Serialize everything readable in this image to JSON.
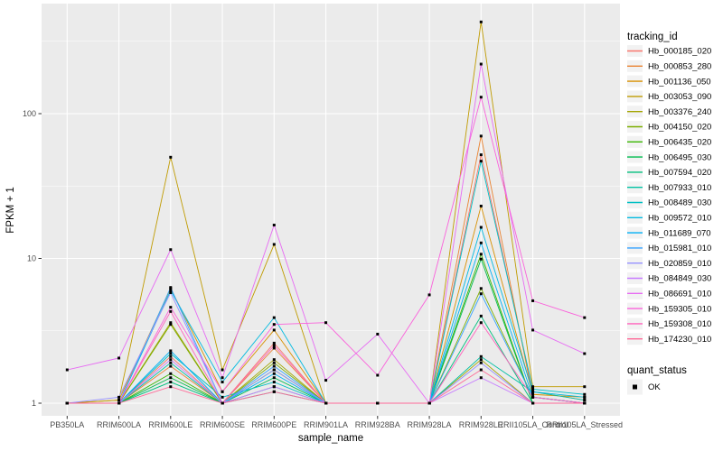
{
  "style": {
    "panel_bg": "#EBEBEB",
    "grid_color": "#FFFFFF",
    "legend_key_bg": "#F2F2F2",
    "point_color": "#000000",
    "tick_label_color": "#4D4D4D",
    "axis_title_color": "#000000"
  },
  "legend": {
    "title": "tracking_id"
  },
  "quant_legend": {
    "title": "quant_status",
    "items": [
      {
        "label": "OK",
        "marker": "black-square"
      }
    ]
  },
  "chart_data": {
    "type": "line",
    "title": "",
    "xlabel": "sample_name",
    "ylabel": "FPKM + 1",
    "y_scale": "log10",
    "ylim": [
      1,
      450
    ],
    "y_ticks": [
      "1",
      "10",
      "100"
    ],
    "y_minor_gridlines": [
      3.162,
      31.62,
      316.2
    ],
    "grid": "on",
    "legend_position": "right",
    "x_categories": [
      "PB350LA",
      "RRIM600LA",
      "RRIM600LE",
      "RRIM600SE",
      "RRIM600PE",
      "RRIM901LA",
      "RRIM928BA",
      "RRIM928LA",
      "RRIM928LE",
      "RRII105LA_Control",
      "RRII105LA_Stressed"
    ],
    "point_marker": "black-square",
    "series": [
      {
        "name": "Hb_000185_020",
        "color": "#F8766D",
        "values": [
          1,
          1,
          2.1,
          1,
          2.6,
          1,
          1,
          1,
          52,
          1.2,
          1.05
        ]
      },
      {
        "name": "Hb_000853_280",
        "color": "#EA8331",
        "values": [
          1,
          1,
          1.8,
          1,
          2.4,
          1,
          1,
          1,
          70,
          1.1,
          1
        ]
      },
      {
        "name": "Hb_001136_050",
        "color": "#D89000",
        "values": [
          1,
          1.05,
          6.2,
          1.2,
          3.2,
          1,
          1,
          1,
          23,
          1.15,
          1.1
        ]
      },
      {
        "name": "Hb_003053_090",
        "color": "#C09B00",
        "values": [
          1,
          1.05,
          50,
          1.7,
          12.5,
          1,
          1,
          1,
          430,
          1.3,
          1.3
        ]
      },
      {
        "name": "Hb_003376_240",
        "color": "#A3A500",
        "values": [
          1,
          1,
          3.6,
          1,
          2.0,
          1,
          1,
          1,
          2.0,
          1,
          1
        ]
      },
      {
        "name": "Hb_004150_020",
        "color": "#7CAE00",
        "values": [
          1,
          1,
          3.5,
          1,
          1.9,
          1,
          1,
          1,
          6.2,
          1.1,
          1
        ]
      },
      {
        "name": "Hb_006435_020",
        "color": "#39B600",
        "values": [
          1,
          1,
          1.6,
          1,
          1.7,
          1,
          1,
          1,
          10.7,
          1,
          1
        ]
      },
      {
        "name": "Hb_006495_030",
        "color": "#00BB4E",
        "values": [
          1,
          1,
          1.5,
          1,
          1.5,
          1,
          1,
          1,
          9.9,
          1,
          1
        ]
      },
      {
        "name": "Hb_007594_020",
        "color": "#00BF7D",
        "values": [
          1,
          1,
          1.4,
          1,
          1.3,
          1,
          1,
          1,
          4.0,
          1,
          1
        ]
      },
      {
        "name": "Hb_007933_010",
        "color": "#00C1A3",
        "values": [
          1,
          1,
          1.9,
          1,
          1.2,
          1,
          1,
          1,
          2.1,
          1.2,
          1.05
        ]
      },
      {
        "name": "Hb_008489_030",
        "color": "#00BFC4",
        "values": [
          1,
          1,
          2.2,
          1.1,
          1.4,
          1,
          1,
          1,
          47,
          1.25,
          1.15
        ]
      },
      {
        "name": "Hb_009572_010",
        "color": "#00BAE0",
        "values": [
          1,
          1,
          6.0,
          1.4,
          3.9,
          1,
          1,
          1,
          16.4,
          1.2,
          1.1
        ]
      },
      {
        "name": "Hb_011689_070",
        "color": "#00B0F6",
        "values": [
          1,
          1,
          2.3,
          1,
          1.6,
          1,
          1,
          1,
          12.8,
          1.1,
          1
        ]
      },
      {
        "name": "Hb_015981_010",
        "color": "#35A2FF",
        "values": [
          1,
          1,
          6.3,
          1,
          1.8,
          1,
          1,
          1,
          5.7,
          1.1,
          1
        ]
      },
      {
        "name": "Hb_020859_010",
        "color": "#9590FF",
        "values": [
          1,
          1.1,
          5.8,
          1,
          1.7,
          1,
          1,
          1,
          1.9,
          1,
          1
        ]
      },
      {
        "name": "Hb_084849_030",
        "color": "#C77CFF",
        "values": [
          1,
          1,
          2.0,
          1,
          1.3,
          1,
          1,
          1,
          1.5,
          1,
          1
        ]
      },
      {
        "name": "Hb_086691_010",
        "color": "#E76BF3",
        "values": [
          1.7,
          2.05,
          11.5,
          1.5,
          17,
          1.44,
          3.0,
          1,
          220,
          3.2,
          2.2
        ]
      },
      {
        "name": "Hb_159305_010",
        "color": "#FA62DB",
        "values": [
          1,
          1,
          4.6,
          1.2,
          3.5,
          3.6,
          1.56,
          5.6,
          130,
          5.1,
          3.9
        ]
      },
      {
        "name": "Hb_159308_010",
        "color": "#FF62BC",
        "values": [
          1,
          1,
          4.3,
          1,
          2.5,
          1,
          1,
          1,
          3.6,
          1.1,
          1
        ]
      },
      {
        "name": "Hb_174230_010",
        "color": "#FF6A98",
        "values": [
          1,
          1,
          1.3,
          1,
          1.2,
          1,
          1,
          1,
          1.7,
          1,
          1
        ]
      }
    ]
  }
}
